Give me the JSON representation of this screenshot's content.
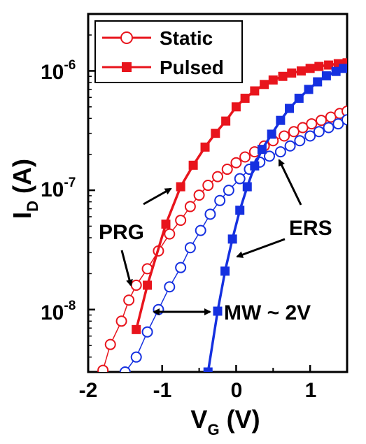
{
  "chart_data": {
    "type": "scatter",
    "title": "",
    "xlabel": "V",
    "xlabel_sub": "G",
    "xlabel_unit": " (V)",
    "ylabel": "I",
    "ylabel_sub": "D",
    "ylabel_unit": " (A)",
    "xlim": [
      -2,
      1.5
    ],
    "ylim": [
      3e-09,
      3e-06
    ],
    "yscale": "log",
    "grid": false,
    "legend_position": "top-left",
    "x_ticks": [
      {
        "value": -2,
        "label": "-2"
      },
      {
        "value": -1,
        "label": "-1"
      },
      {
        "value": 0,
        "label": "0"
      },
      {
        "value": 1,
        "label": "1"
      }
    ],
    "y_ticks": [
      {
        "value": 1e-08,
        "base": "10",
        "exp": "-8"
      },
      {
        "value": 1e-07,
        "base": "10",
        "exp": "-7"
      },
      {
        "value": 1e-06,
        "base": "10",
        "exp": "-6"
      }
    ],
    "series": [
      {
        "name": "Static",
        "group": "PRG",
        "color": "#e8141c",
        "marker": "circle-open",
        "x": [
          -1.8,
          -1.7,
          -1.55,
          -1.45,
          -1.35,
          -1.2,
          -1.05,
          -0.9,
          -0.75,
          -0.62,
          -0.5,
          -0.38,
          -0.25,
          -0.12,
          0.0,
          0.12,
          0.25,
          0.38,
          0.5,
          0.65,
          0.78,
          0.9,
          1.02,
          1.15,
          1.28,
          1.4,
          1.5
        ],
        "y": [
          3.1e-09,
          5.1e-09,
          8e-09,
          1.2e-08,
          1.6e-08,
          2.2e-08,
          3.1e-08,
          4.3e-08,
          5.6e-08,
          7.3e-08,
          9.1e-08,
          1.1e-07,
          1.3e-07,
          1.5e-07,
          1.7e-07,
          1.9e-07,
          2.1e-07,
          2.35e-07,
          2.6e-07,
          2.85e-07,
          3.1e-07,
          3.35e-07,
          3.6e-07,
          3.85e-07,
          4.1e-07,
          4.4e-07,
          4.6e-07
        ]
      },
      {
        "name": "Pulsed",
        "group": "PRG",
        "color": "#e8141c",
        "marker": "square-filled",
        "x": [
          -1.35,
          -1.2,
          -0.95,
          -0.75,
          -0.58,
          -0.42,
          -0.28,
          -0.14,
          0.0,
          0.12,
          0.25,
          0.38,
          0.5,
          0.63,
          0.75,
          0.88,
          1.0,
          1.12,
          1.25,
          1.38,
          1.5
        ],
        "y": [
          6.8e-09,
          1.6e-08,
          5.2e-08,
          1.07e-07,
          1.62e-07,
          2.3e-07,
          3e-07,
          3.8e-07,
          5e-07,
          5.9e-07,
          6.8e-07,
          7.7e-07,
          8.4e-07,
          9e-07,
          9.6e-07,
          1e-06,
          1.05e-06,
          1.09e-06,
          1.12e-06,
          1.15e-06,
          1.17e-06
        ]
      },
      {
        "name": "Static",
        "group": "ERS",
        "color": "#1530e0",
        "marker": "circle-open",
        "x": [
          -1.5,
          -1.35,
          -1.2,
          -1.05,
          -0.9,
          -0.75,
          -0.62,
          -0.48,
          -0.35,
          -0.22,
          -0.1,
          0.05,
          0.18,
          0.32,
          0.45,
          0.6,
          0.73,
          0.86,
          1.0,
          1.12,
          1.25,
          1.38,
          1.5
        ],
        "y": [
          3e-09,
          4e-09,
          6.5e-09,
          1e-08,
          1.55e-08,
          2.25e-08,
          3.3e-08,
          4.6e-08,
          6.3e-08,
          8.2e-08,
          1e-07,
          1.25e-07,
          1.5e-07,
          1.72e-07,
          1.93e-07,
          2.1e-07,
          2.35e-07,
          2.6e-07,
          2.85e-07,
          3.1e-07,
          3.35e-07,
          3.6e-07,
          3.9e-07
        ]
      },
      {
        "name": "Pulsed",
        "group": "ERS",
        "color": "#1530e0",
        "marker": "square-filled",
        "x": [
          -0.38,
          -0.25,
          -0.15,
          -0.05,
          0.05,
          0.15,
          0.25,
          0.35,
          0.48,
          0.6,
          0.72,
          0.85,
          0.98,
          1.1,
          1.22,
          1.35,
          1.45
        ],
        "y": [
          3e-09,
          9.7e-09,
          2.1e-08,
          3.9e-08,
          6.8e-08,
          1.07e-07,
          1.6e-07,
          2.2e-07,
          2.95e-07,
          3.85e-07,
          4.85e-07,
          5.9e-07,
          7e-07,
          8.1e-07,
          9.1e-07,
          9.9e-07,
          1.05e-06
        ]
      }
    ],
    "legend": [
      {
        "label": "Static",
        "marker": "circle-open",
        "color": "#e8141c"
      },
      {
        "label": "Pulsed",
        "marker": "square-filled",
        "color": "#e8141c"
      }
    ],
    "annotations": [
      {
        "text": "PRG"
      },
      {
        "text": "ERS"
      },
      {
        "text": "MW ~ 2V"
      }
    ]
  }
}
